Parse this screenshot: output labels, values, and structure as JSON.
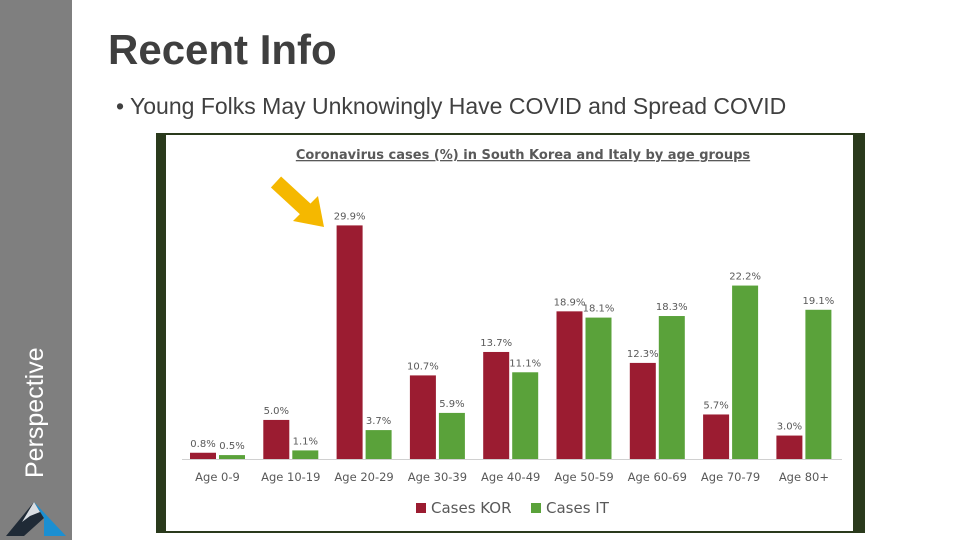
{
  "sidebar": {
    "label": "Perspective"
  },
  "slide": {
    "title": "Recent Info",
    "bullet": "• Young Folks May Unknowingly Have COVID and Spread COVID"
  },
  "annotation": {
    "icon": "arrow-down-right-icon",
    "color": "#f5b800"
  },
  "chart_data": {
    "type": "bar",
    "title": "Coronavirus cases (%) in South Korea and Italy by age groups",
    "xlabel": "",
    "ylabel": "",
    "ylim": [
      0,
      32
    ],
    "grid": false,
    "legend": "bottom",
    "categories": [
      "Age 0-9",
      "Age 10-19",
      "Age 20-29",
      "Age 30-39",
      "Age 40-49",
      "Age 50-59",
      "Age 60-69",
      "Age 70-79",
      "Age 80+"
    ],
    "series": [
      {
        "name": "Cases KOR",
        "color": "#9b1c31",
        "values": [
          0.8,
          5.0,
          29.9,
          10.7,
          13.7,
          18.9,
          12.3,
          5.7,
          3.0
        ],
        "labels": [
          "0.8%",
          "5.0%",
          "29.9%",
          "10.7%",
          "13.7%",
          "18.9%",
          "12.3%",
          "5.7%",
          "3.0%"
        ]
      },
      {
        "name": "Cases IT",
        "color": "#5aa23a",
        "values": [
          0.5,
          1.1,
          3.7,
          5.9,
          11.1,
          18.1,
          18.3,
          22.2,
          19.1
        ],
        "labels": [
          "0.5%",
          "1.1%",
          "3.7%",
          "5.9%",
          "11.1%",
          "18.1%",
          "18.3%",
          "22.2%",
          "19.1%"
        ]
      }
    ]
  }
}
